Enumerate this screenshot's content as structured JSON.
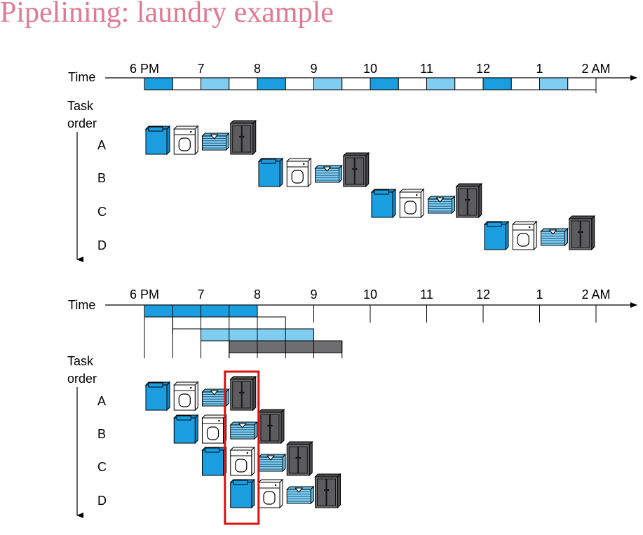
{
  "title": "Pipelining: laundry example",
  "time_label": "Time",
  "task_order_label": [
    "Task",
    "order"
  ],
  "hour_labels": [
    "6 PM",
    "7",
    "8",
    "9",
    "10",
    "11",
    "12",
    "1",
    "2 AM"
  ],
  "tasks": [
    "A",
    "B",
    "C",
    "D"
  ],
  "colors": {
    "title": "#e07a92",
    "washer": "#1a9ee0",
    "dryer_fill": "#ffffff",
    "folder": "#7fcdf0",
    "storer": "#6e6e70",
    "highlight": "#e01010"
  },
  "icons": [
    "washer-icon",
    "dryer-icon",
    "folder-icon",
    "storer-icon"
  ],
  "stages": [
    "wash",
    "dry",
    "fold",
    "store"
  ],
  "stage_duration_hours": 0.5,
  "sequential_start_hours": [
    0,
    2,
    4,
    6
  ],
  "pipelined_start_hours": [
    0,
    0.5,
    1,
    1.5
  ]
}
